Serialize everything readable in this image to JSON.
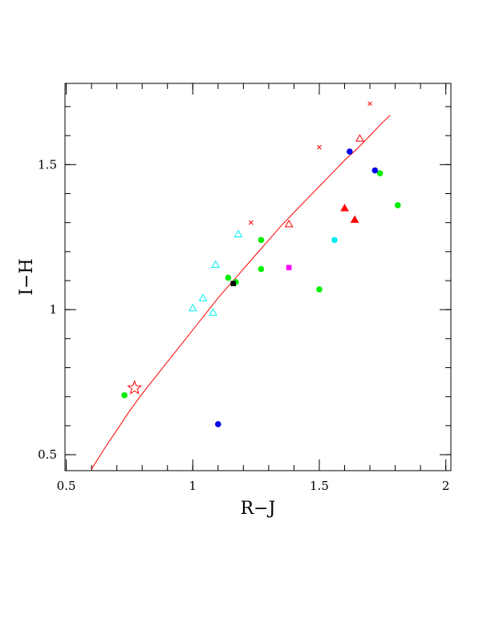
{
  "chart_data": {
    "type": "scatter",
    "title": "",
    "xlabel": "R−J",
    "ylabel": "I−H",
    "xlim": [
      0.495,
      2.02
    ],
    "ylim": [
      0.445,
      1.78
    ],
    "grid": false,
    "x_ticks": [
      {
        "value": 0.5,
        "label": "0.5"
      },
      {
        "value": 1.0,
        "label": "1"
      },
      {
        "value": 1.5,
        "label": "1.5"
      },
      {
        "value": 2.0,
        "label": "2"
      }
    ],
    "y_ticks": [
      {
        "value": 0.5,
        "label": "0.5"
      },
      {
        "value": 1.0,
        "label": "1"
      },
      {
        "value": 1.5,
        "label": "1.5"
      }
    ],
    "x_minor_step": 0.1,
    "y_minor_step": 0.1,
    "curve": {
      "color": "#ff0000",
      "points": [
        [
          0.6,
          0.45
        ],
        [
          0.65,
          0.52
        ],
        [
          0.7,
          0.585
        ],
        [
          0.75,
          0.65
        ],
        [
          0.8,
          0.71
        ],
        [
          0.85,
          0.765
        ],
        [
          0.9,
          0.82
        ],
        [
          0.95,
          0.875
        ],
        [
          1.0,
          0.93
        ],
        [
          1.05,
          0.985
        ],
        [
          1.1,
          1.04
        ],
        [
          1.15,
          1.09
        ],
        [
          1.2,
          1.14
        ],
        [
          1.25,
          1.19
        ],
        [
          1.3,
          1.24
        ],
        [
          1.35,
          1.29
        ],
        [
          1.4,
          1.335
        ],
        [
          1.45,
          1.38
        ],
        [
          1.5,
          1.425
        ],
        [
          1.55,
          1.47
        ],
        [
          1.6,
          1.515
        ],
        [
          1.65,
          1.555
        ],
        [
          1.7,
          1.6
        ],
        [
          1.75,
          1.645
        ],
        [
          1.78,
          1.67
        ]
      ],
      "cross_marks": [
        [
          1.23,
          1.3
        ],
        [
          1.5,
          1.56
        ],
        [
          1.7,
          1.71
        ]
      ]
    },
    "series": [
      {
        "marker": "circle",
        "color": "#00ee00",
        "points": [
          [
            0.73,
            0.705
          ],
          [
            1.14,
            1.11
          ],
          [
            1.17,
            1.095
          ],
          [
            1.27,
            1.24
          ],
          [
            1.27,
            1.14
          ],
          [
            1.5,
            1.07
          ],
          [
            1.74,
            1.47
          ],
          [
            1.81,
            1.36
          ]
        ]
      },
      {
        "marker": "circle",
        "color": "#0000ee",
        "points": [
          [
            1.1,
            0.605
          ],
          [
            1.62,
            1.545
          ],
          [
            1.72,
            1.48
          ]
        ]
      },
      {
        "marker": "circle",
        "color": "#00eeee",
        "points": [
          [
            1.56,
            1.24
          ]
        ]
      },
      {
        "marker": "square",
        "color": "#000000",
        "points": [
          [
            1.16,
            1.09
          ]
        ]
      },
      {
        "marker": "square",
        "color": "#ff00ff",
        "points": [
          [
            1.38,
            1.145
          ]
        ]
      },
      {
        "marker": "triangle-filled",
        "color": "#ff0000",
        "points": [
          [
            1.6,
            1.35
          ],
          [
            1.64,
            1.31
          ]
        ]
      },
      {
        "marker": "triangle-open",
        "color": "#ff0000",
        "points": [
          [
            1.38,
            1.295
          ],
          [
            1.66,
            1.59
          ]
        ]
      },
      {
        "marker": "triangle-open",
        "color": "#00eeee",
        "points": [
          [
            1.0,
            1.005
          ],
          [
            1.04,
            1.04
          ],
          [
            1.08,
            0.99
          ],
          [
            1.09,
            1.155
          ],
          [
            1.18,
            1.26
          ]
        ]
      },
      {
        "marker": "star-open",
        "color": "#ff0000",
        "points": [
          [
            0.77,
            0.73
          ]
        ]
      }
    ]
  }
}
